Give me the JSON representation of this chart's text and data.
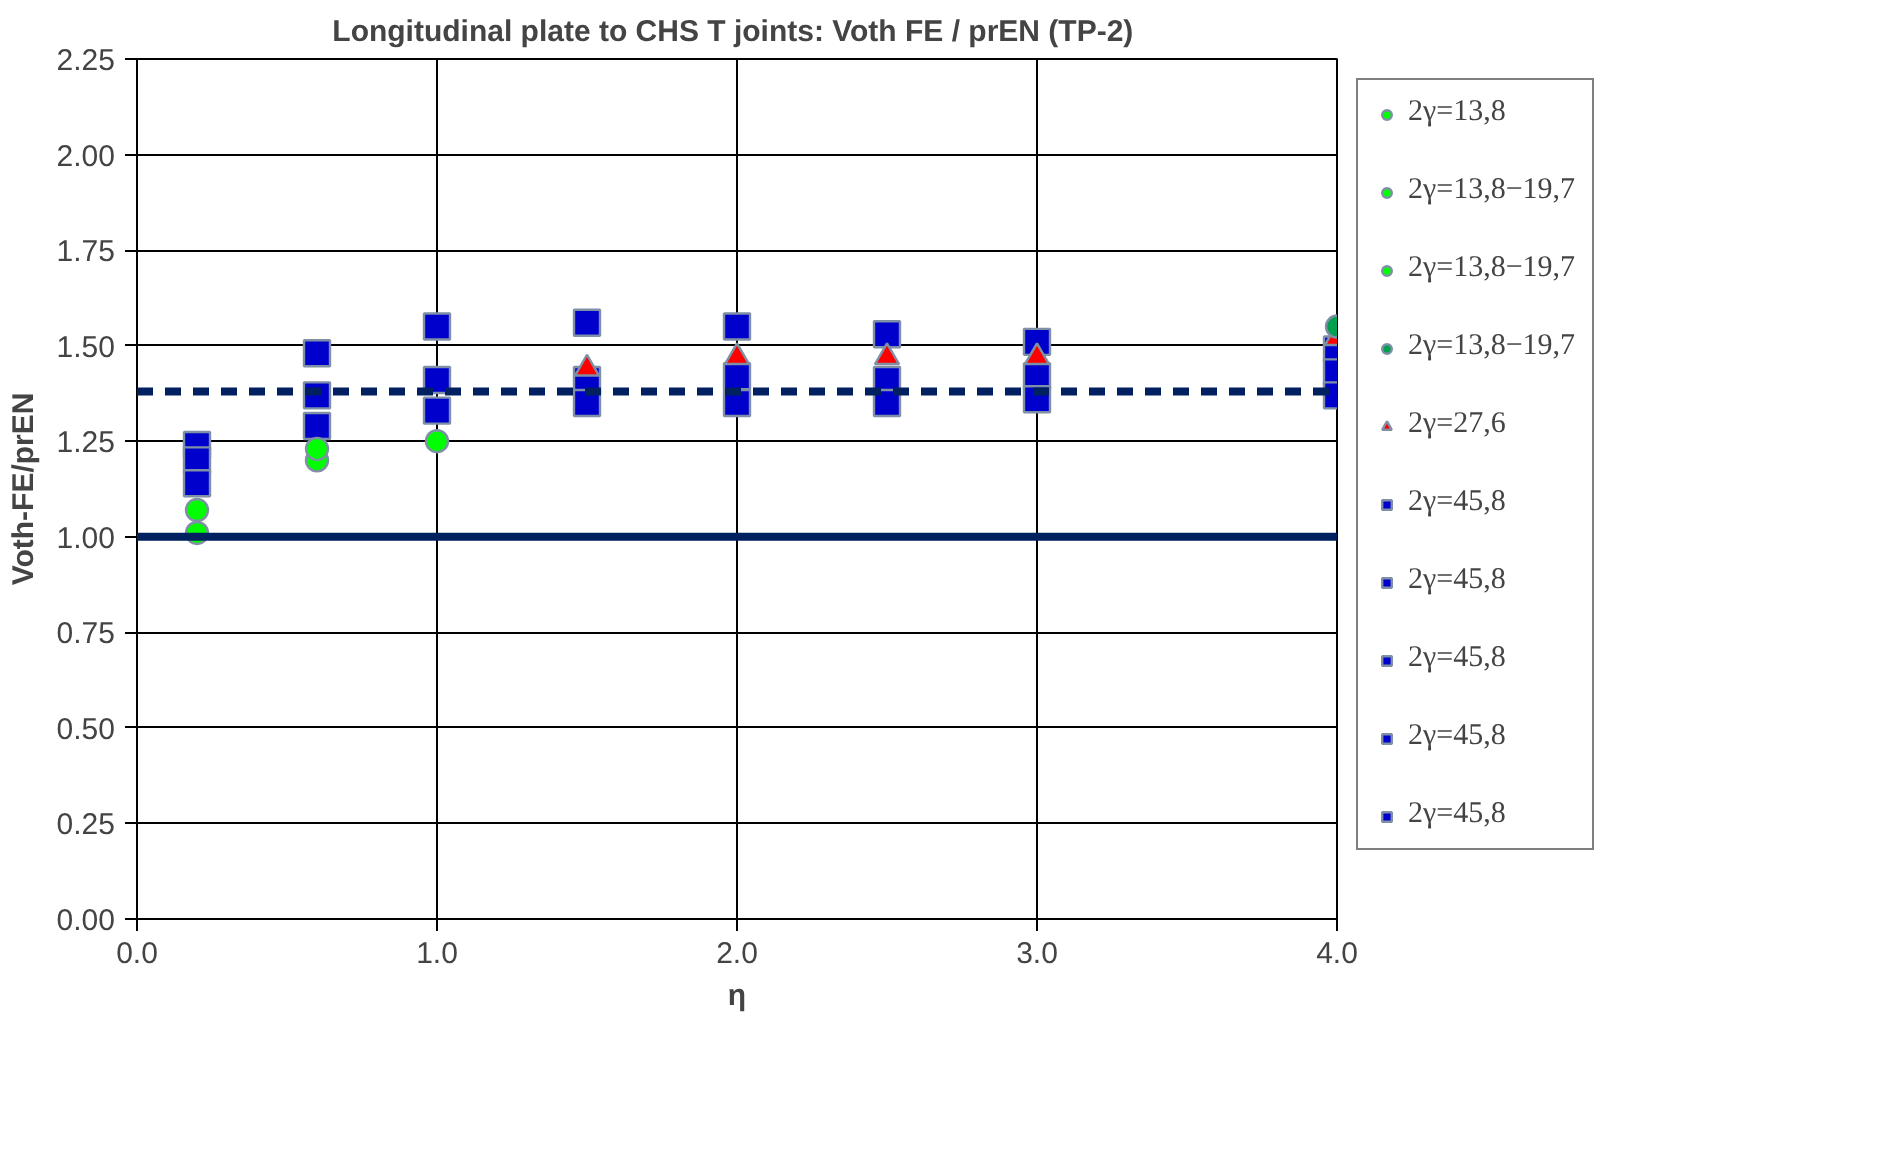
{
  "chart_data": {
    "type": "scatter",
    "title": "Longitudinal plate to CHS T joints: Voth FE / prEN  (TP-2)",
    "xlabel": "η",
    "ylabel": "Voth-FE/prEN",
    "xlim": [
      0,
      4
    ],
    "xticks": [
      {
        "value": 0,
        "label": "0.0"
      },
      {
        "value": 1,
        "label": "1.0"
      },
      {
        "value": 2,
        "label": "2.0"
      },
      {
        "value": 3,
        "label": "3.0"
      },
      {
        "value": 4,
        "label": "4.0"
      }
    ],
    "ylim": [
      0,
      2.25
    ],
    "yticks": [
      {
        "value": 0,
        "label": "0.00"
      },
      {
        "value": 0.25,
        "label": "0.25"
      },
      {
        "value": 0.5,
        "label": "0.50"
      },
      {
        "value": 0.75,
        "label": "0.75"
      },
      {
        "value": 1,
        "label": "1.00"
      },
      {
        "value": 1.25,
        "label": "1.25"
      },
      {
        "value": 1.5,
        "label": "1.50"
      },
      {
        "value": 1.75,
        "label": "1.75"
      },
      {
        "value": 2,
        "label": "2.00"
      },
      {
        "value": 2.25,
        "label": "2.25"
      }
    ],
    "grid": true,
    "legend": "right",
    "ref_lines": [
      {
        "axis": "y",
        "value": 1.0,
        "color": "#002060",
        "line_style": "solid"
      },
      {
        "axis": "y",
        "value": 1.38,
        "color": "#002060",
        "line_style": "dashed"
      }
    ],
    "series": [
      {
        "name": "2γ=13,8",
        "marker": "circle",
        "color": "#00ff00",
        "x": [
          0.2,
          0.6
        ],
        "values": [
          1.01,
          1.2
        ]
      },
      {
        "name": "2γ=13,8−19,7",
        "marker": "circle",
        "color": "#00ff00",
        "x": [
          0.2,
          0.6
        ],
        "values": [
          1.07,
          1.23
        ]
      },
      {
        "name": "2γ=13,8−19,7",
        "marker": "circle",
        "color": "#00ff00",
        "x": [
          1.0
        ],
        "values": [
          1.25
        ]
      },
      {
        "name": "2γ=13,8−19,7",
        "marker": "circle",
        "color": "#00a050",
        "x": [
          4.0
        ],
        "values": [
          1.55
        ]
      },
      {
        "name": "2γ=27,6",
        "marker": "triangle",
        "color": "#ff0000",
        "x": [
          1.5,
          2.0,
          2.5,
          3.0,
          4.0
        ],
        "values": [
          1.44,
          1.47,
          1.47,
          1.47,
          1.52
        ]
      },
      {
        "name": "2γ=45,8",
        "marker": "square",
        "color": "#0000cc",
        "x": [
          1.5,
          2.0,
          2.5,
          3.0,
          4.0
        ],
        "values": [
          1.56,
          1.55,
          1.53,
          1.51,
          1.49
        ]
      },
      {
        "name": "2γ=45,8",
        "marker": "square",
        "color": "#0000cc",
        "x": [
          0.2,
          0.6,
          1.0
        ],
        "values": [
          1.24,
          1.48,
          1.55
        ]
      },
      {
        "name": "2γ=45,8",
        "marker": "square",
        "color": "#0000cc",
        "x": [
          0.2,
          0.6,
          1.0
        ],
        "values": [
          1.2,
          1.37,
          1.41
        ]
      },
      {
        "name": "2γ=45,8",
        "marker": "square",
        "color": "#0000cc",
        "x": [
          1.5,
          2.0,
          2.5,
          3.0,
          4.0
        ],
        "values": [
          1.41,
          1.42,
          1.41,
          1.42,
          1.43
        ]
      },
      {
        "name": "2γ=45,8",
        "marker": "square",
        "color": "#0000cc",
        "x": [
          0.2,
          0.6,
          1.0,
          1.5,
          2.0,
          2.5,
          3.0,
          4.0
        ],
        "values": [
          1.14,
          1.29,
          1.33,
          1.35,
          1.35,
          1.35,
          1.36,
          1.37
        ]
      }
    ]
  }
}
